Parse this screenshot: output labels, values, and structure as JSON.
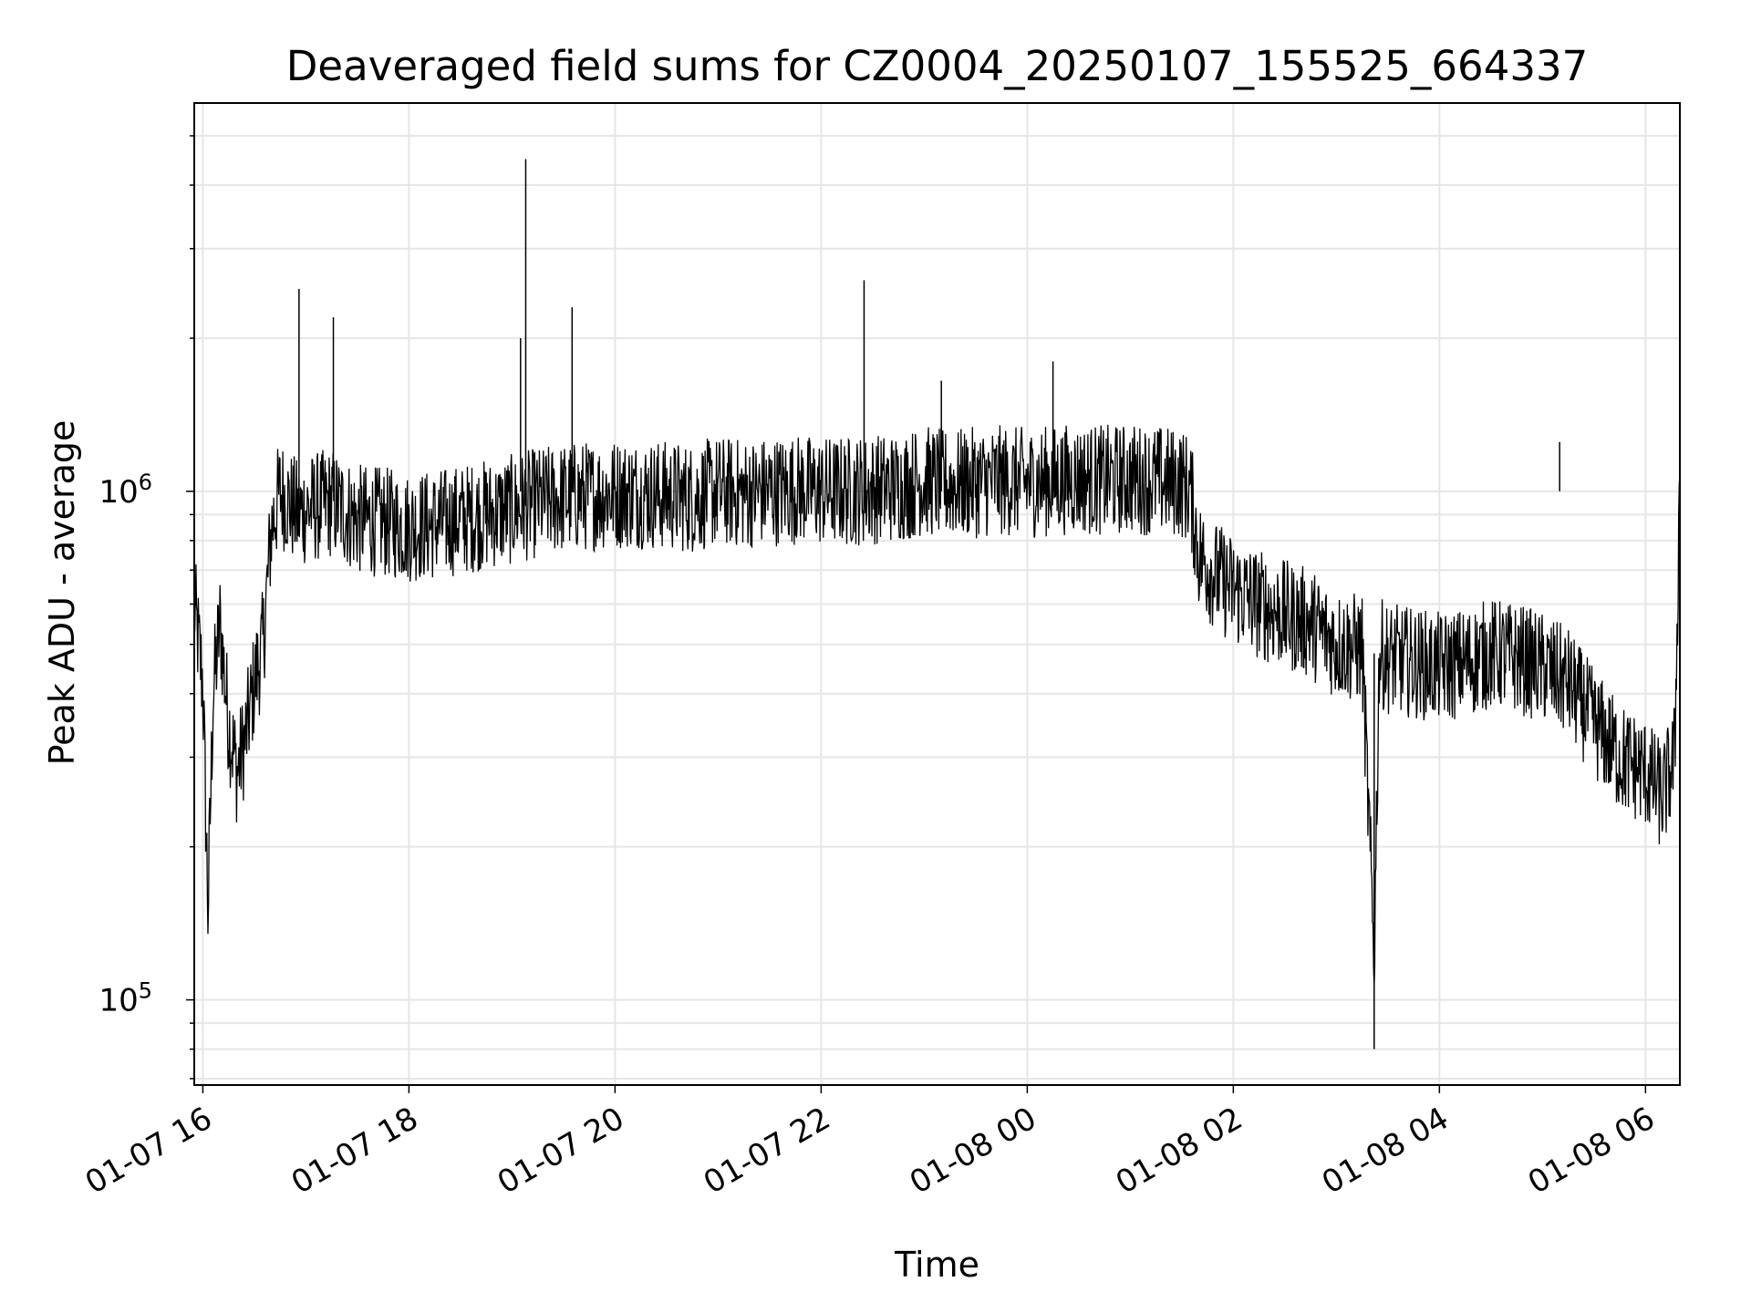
{
  "chart_data": {
    "type": "line",
    "title": "Deaveraged field sums for CZ0004_20250107_155525_664337",
    "xlabel": "Time",
    "ylabel": "Peak ADU - average",
    "y_scale": "log",
    "ylim": [
      68000,
      5800000
    ],
    "xlim": [
      "2025-01-07 15:55",
      "2025-01-08 06:20"
    ],
    "grid": true,
    "x_ticks": [
      "01-07 16",
      "01-07 18",
      "01-07 20",
      "01-07 22",
      "01-08 00",
      "01-08 02",
      "01-08 04",
      "01-08 06"
    ],
    "y_ticks": [
      {
        "base": "10",
        "exp": "5",
        "value": 100000
      },
      {
        "base": "10",
        "exp": "6",
        "value": 1000000
      }
    ],
    "line_color": "#000000",
    "series": [
      {
        "x": [
          "2025-01-07 15:55",
          "2025-01-07 16:00",
          "2025-01-07 16:03",
          "2025-01-07 16:06",
          "2025-01-07 16:10",
          "2025-01-07 16:15",
          "2025-01-07 16:20",
          "2025-01-07 16:25",
          "2025-01-07 16:30",
          "2025-01-07 16:35",
          "2025-01-07 16:40",
          "2025-01-07 16:45",
          "2025-01-07 16:50",
          "2025-01-07 16:55",
          "2025-01-07 17:00",
          "2025-01-07 17:15",
          "2025-01-07 17:30",
          "2025-01-07 17:45",
          "2025-01-07 18:00",
          "2025-01-07 18:15",
          "2025-01-07 18:30",
          "2025-01-07 18:45",
          "2025-01-07 19:00",
          "2025-01-07 19:15",
          "2025-01-07 19:30",
          "2025-01-07 19:45",
          "2025-01-07 20:00",
          "2025-01-07 20:15",
          "2025-01-07 20:30",
          "2025-01-07 20:45",
          "2025-01-07 21:00",
          "2025-01-07 21:15",
          "2025-01-07 21:30",
          "2025-01-07 21:45",
          "2025-01-07 22:00",
          "2025-01-07 22:15",
          "2025-01-07 22:30",
          "2025-01-07 22:45",
          "2025-01-07 23:00",
          "2025-01-07 23:15",
          "2025-01-07 23:30",
          "2025-01-07 23:45",
          "2025-01-08 00:00",
          "2025-01-08 00:15",
          "2025-01-08 00:30",
          "2025-01-08 00:45",
          "2025-01-08 01:00",
          "2025-01-08 01:15",
          "2025-01-08 01:30",
          "2025-01-08 01:35",
          "2025-01-08 01:40",
          "2025-01-08 01:50",
          "2025-01-08 02:00",
          "2025-01-08 02:15",
          "2025-01-08 02:30",
          "2025-01-08 02:45",
          "2025-01-08 03:00",
          "2025-01-08 03:15",
          "2025-01-08 03:22",
          "2025-01-08 03:25",
          "2025-01-08 03:30",
          "2025-01-08 03:45",
          "2025-01-08 04:00",
          "2025-01-08 04:15",
          "2025-01-08 04:30",
          "2025-01-08 04:45",
          "2025-01-08 05:00",
          "2025-01-08 05:15",
          "2025-01-08 05:30",
          "2025-01-08 05:45",
          "2025-01-08 06:00",
          "2025-01-08 06:10",
          "2025-01-08 06:17",
          "2025-01-08 06:20"
        ],
        "y": [
          600000,
          420000,
          150000,
          400000,
          550000,
          350000,
          280000,
          330000,
          420000,
          500000,
          850000,
          1000000,
          950000,
          900000,
          920000,
          950000,
          880000,
          870000,
          850000,
          860000,
          880000,
          900000,
          920000,
          950000,
          970000,
          980000,
          990000,
          990000,
          980000,
          970000,
          1000000,
          990000,
          1000000,
          1010000,
          1000000,
          1000000,
          1010000,
          1020000,
          1050000,
          1030000,
          1040000,
          1050000,
          1040000,
          1050000,
          1060000,
          1050000,
          1060000,
          1050000,
          1040000,
          1000000,
          750000,
          680000,
          640000,
          600000,
          570000,
          550000,
          500000,
          490000,
          120000,
          480000,
          470000,
          460000,
          450000,
          460000,
          480000,
          470000,
          450000,
          420000,
          350000,
          300000,
          280000,
          250000,
          300000,
          1100000
        ]
      }
    ],
    "spikes": [
      {
        "x": "2025-01-07 16:56",
        "y": 2500000
      },
      {
        "x": "2025-01-07 17:16",
        "y": 2200000
      },
      {
        "x": "2025-01-07 19:08",
        "y": 4500000
      },
      {
        "x": "2025-01-07 19:05",
        "y": 2000000
      },
      {
        "x": "2025-01-07 19:35",
        "y": 2300000
      },
      {
        "x": "2025-01-07 22:25",
        "y": 2600000
      },
      {
        "x": "2025-01-07 23:10",
        "y": 1650000
      },
      {
        "x": "2025-01-08 00:15",
        "y": 1800000
      },
      {
        "x": "2025-01-08 05:10",
        "y": 1250000
      },
      {
        "x": "2025-01-08 03:22",
        "y": 80000
      }
    ]
  }
}
